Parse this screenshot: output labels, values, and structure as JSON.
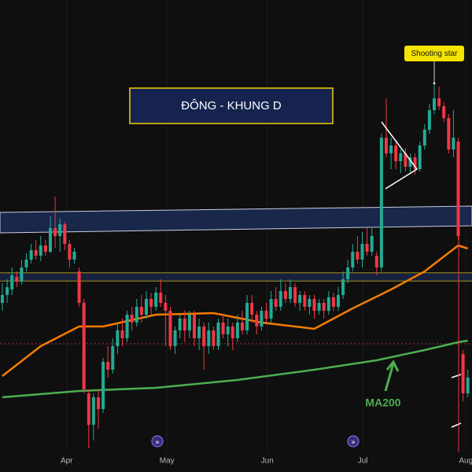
{
  "chart_data": {
    "type": "candlestick",
    "title": "ĐÔNG - KHUNG D",
    "up_color": "#22ab94",
    "down_color": "#f23645",
    "xlim": [
      -0.49,
      97.87
    ],
    "ylim": [
      0,
      575
    ],
    "xticks": [
      {
        "value": 13.4,
        "label": "Apr"
      },
      {
        "value": 34.3,
        "label": "May"
      },
      {
        "value": 55.2,
        "label": "Jun"
      },
      {
        "value": 75.1,
        "label": "Jul"
      },
      {
        "value": 96.6,
        "label": "Aug"
      }
    ],
    "candles": [
      [
        190,
        215,
        180,
        200
      ],
      [
        200,
        220,
        190,
        210
      ],
      [
        207,
        235,
        200,
        225
      ],
      [
        223,
        230,
        210,
        217
      ],
      [
        217,
        245,
        213,
        235
      ],
      [
        235,
        253,
        230,
        245
      ],
      [
        245,
        265,
        240,
        257
      ],
      [
        257,
        270,
        245,
        250
      ],
      [
        250,
        275,
        243,
        263
      ],
      [
        263,
        270,
        250,
        255
      ],
      [
        255,
        300,
        253,
        285
      ],
      [
        285,
        325,
        260,
        275
      ],
      [
        275,
        297,
        255,
        290
      ],
      [
        290,
        293,
        257,
        265
      ],
      [
        265,
        270,
        235,
        245
      ],
      [
        245,
        260,
        240,
        255
      ],
      [
        230,
        235,
        185,
        190
      ],
      [
        190,
        195,
        75,
        80
      ],
      [
        75,
        80,
        5,
        35
      ],
      [
        35,
        75,
        15,
        70
      ],
      [
        70,
        80,
        30,
        55
      ],
      [
        55,
        120,
        50,
        115
      ],
      [
        115,
        135,
        95,
        105
      ],
      [
        105,
        145,
        100,
        135
      ],
      [
        135,
        165,
        125,
        155
      ],
      [
        155,
        170,
        135,
        145
      ],
      [
        145,
        180,
        140,
        175
      ],
      [
        175,
        185,
        155,
        165
      ],
      [
        165,
        195,
        160,
        185
      ],
      [
        185,
        200,
        165,
        175
      ],
      [
        175,
        205,
        170,
        195
      ],
      [
        195,
        203,
        175,
        185
      ],
      [
        185,
        210,
        180,
        203
      ],
      [
        203,
        220,
        185,
        190
      ],
      [
        190,
        200,
        135,
        180
      ],
      [
        180,
        185,
        130,
        135
      ],
      [
        135,
        160,
        125,
        155
      ],
      [
        155,
        175,
        145,
        170
      ],
      [
        170,
        180,
        140,
        155
      ],
      [
        155,
        180,
        145,
        175
      ],
      [
        175,
        180,
        135,
        145
      ],
      [
        145,
        170,
        130,
        160
      ],
      [
        160,
        165,
        105,
        135
      ],
      [
        135,
        165,
        125,
        155
      ],
      [
        155,
        160,
        130,
        135
      ],
      [
        135,
        170,
        130,
        165
      ],
      [
        165,
        175,
        145,
        150
      ],
      [
        150,
        170,
        135,
        160
      ],
      [
        160,
        165,
        130,
        145
      ],
      [
        145,
        175,
        140,
        165
      ],
      [
        165,
        180,
        150,
        155
      ],
      [
        155,
        200,
        150,
        190
      ],
      [
        190,
        200,
        165,
        175
      ],
      [
        175,
        180,
        150,
        160
      ],
      [
        160,
        185,
        155,
        180
      ],
      [
        180,
        190,
        165,
        170
      ],
      [
        170,
        205,
        165,
        195
      ],
      [
        195,
        210,
        180,
        185
      ],
      [
        185,
        220,
        180,
        205
      ],
      [
        205,
        215,
        190,
        195
      ],
      [
        195,
        220,
        190,
        210
      ],
      [
        210,
        215,
        185,
        190
      ],
      [
        190,
        205,
        180,
        200
      ],
      [
        200,
        205,
        180,
        185
      ],
      [
        185,
        200,
        175,
        195
      ],
      [
        195,
        200,
        170,
        180
      ],
      [
        180,
        195,
        175,
        190
      ],
      [
        190,
        195,
        170,
        180
      ],
      [
        180,
        205,
        175,
        197
      ],
      [
        197,
        203,
        180,
        185
      ],
      [
        185,
        210,
        180,
        200
      ],
      [
        200,
        230,
        195,
        220
      ],
      [
        220,
        245,
        215,
        235
      ],
      [
        235,
        265,
        230,
        255
      ],
      [
        255,
        275,
        240,
        245
      ],
      [
        245,
        280,
        235,
        265
      ],
      [
        265,
        285,
        250,
        255
      ],
      [
        255,
        285,
        250,
        275
      ],
      [
        250,
        255,
        225,
        235
      ],
      [
        235,
        405,
        230,
        400
      ],
      [
        400,
        450,
        375,
        380
      ],
      [
        380,
        400,
        360,
        390
      ],
      [
        390,
        395,
        360,
        370
      ],
      [
        370,
        385,
        355,
        380
      ],
      [
        380,
        387,
        357,
        363
      ],
      [
        363,
        380,
        355,
        375
      ],
      [
        375,
        380,
        353,
        360
      ],
      [
        360,
        395,
        357,
        390
      ],
      [
        390,
        417,
        385,
        410
      ],
      [
        410,
        443,
        405,
        435
      ],
      [
        435,
        467,
        430,
        450
      ],
      [
        450,
        465,
        435,
        440
      ],
      [
        440,
        445,
        420,
        425
      ],
      [
        425,
        430,
        380,
        385
      ],
      [
        385,
        435,
        375,
        400
      ],
      [
        395,
        400,
        270,
        275
      ],
      [
        125,
        130,
        65,
        75
      ],
      [
        75,
        105,
        70,
        95
      ]
    ],
    "series": [
      {
        "color": "#f57c00",
        "x": [
          0,
          8,
          16,
          21,
          32,
          44,
          54,
          65,
          73,
          81,
          88,
          95,
          97
        ],
        "values": [
          97,
          135,
          160,
          160,
          175,
          177,
          165,
          157,
          183,
          207,
          230,
          263,
          259
        ]
      },
      {
        "name": "MA200",
        "color": "#4caf50",
        "x": [
          0,
          16,
          32,
          49,
          65,
          78,
          88,
          95,
          97
        ],
        "values": [
          70,
          78,
          82,
          92,
          105,
          117,
          130,
          140,
          142
        ]
      }
    ],
    "levels": [
      {
        "value": 228,
        "color": "#f0d000"
      },
      {
        "value": 218,
        "color": "#f0d000"
      },
      {
        "value": 138,
        "color": "#b2323b",
        "dashed": true
      }
    ],
    "channel": {
      "upper": [
        305,
        313
      ],
      "lower": [
        279,
        288
      ]
    },
    "annotations": [
      {
        "text": "Shooting star",
        "x": 90
      }
    ]
  }
}
